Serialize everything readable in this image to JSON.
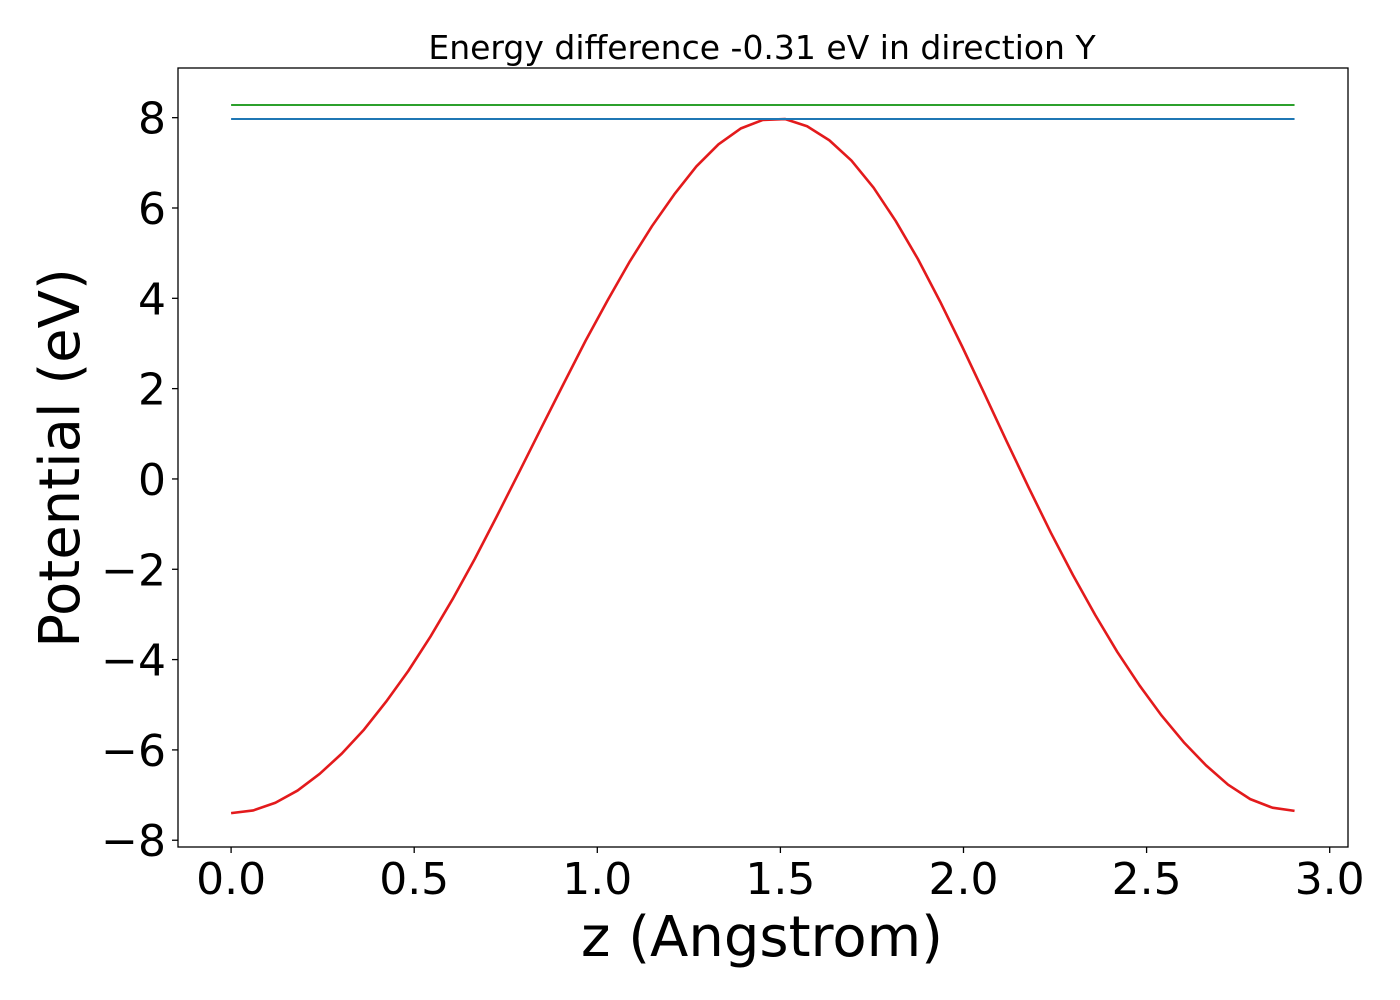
{
  "chart_data": {
    "type": "line",
    "title": "Energy difference -0.31 eV in direction Y",
    "xlabel": "z (Angstrom)",
    "ylabel": "Potential (eV)",
    "xlim": [
      -0.145,
      3.05
    ],
    "ylim": [
      -8.15,
      9.1
    ],
    "x_ticks": [
      0.0,
      0.5,
      1.0,
      1.5,
      2.0,
      2.5,
      3.0
    ],
    "x_tick_labels": [
      "0.0",
      "0.5",
      "1.0",
      "1.5",
      "2.0",
      "2.5",
      "3.0"
    ],
    "y_ticks": [
      -8,
      -6,
      -4,
      -2,
      0,
      2,
      4,
      6,
      8
    ],
    "y_tick_labels": [
      "−8",
      "−6",
      "−4",
      "−2",
      "0",
      "2",
      "4",
      "6",
      "8"
    ],
    "grid": false,
    "series": [
      {
        "name": "potential",
        "color": "#e31a1c",
        "x": [
          0.0,
          0.0605,
          0.121,
          0.1815,
          0.242,
          0.3025,
          0.363,
          0.4235,
          0.484,
          0.5445,
          0.605,
          0.6655,
          0.726,
          0.7865,
          0.847,
          0.9075,
          0.968,
          1.0285,
          1.089,
          1.1495,
          1.21,
          1.2705,
          1.331,
          1.3915,
          1.452,
          1.5125,
          1.573,
          1.6335,
          1.694,
          1.7545,
          1.815,
          1.8755,
          1.936,
          1.9965,
          2.057,
          2.1175,
          2.178,
          2.2385,
          2.299,
          2.3595,
          2.42,
          2.4805,
          2.541,
          2.6015,
          2.662,
          2.7225,
          2.783,
          2.8435,
          2.904
        ],
        "y": [
          -7.4,
          -7.34,
          -7.17,
          -6.9,
          -6.53,
          -6.08,
          -5.55,
          -4.93,
          -4.25,
          -3.49,
          -2.66,
          -1.77,
          -0.82,
          0.15,
          1.13,
          2.1,
          3.06,
          3.96,
          4.82,
          5.6,
          6.3,
          6.92,
          7.41,
          7.76,
          7.95,
          7.97,
          7.81,
          7.5,
          7.05,
          6.45,
          5.71,
          4.87,
          3.93,
          2.93,
          1.89,
          0.84,
          -0.19,
          -1.19,
          -2.13,
          -3.01,
          -3.83,
          -4.57,
          -5.24,
          -5.83,
          -6.34,
          -6.77,
          -7.09,
          -7.28,
          -7.35
        ]
      },
      {
        "name": "level-blue",
        "color": "#1f77b4",
        "x": [
          0.0,
          2.904
        ],
        "y": [
          7.97,
          7.97
        ]
      },
      {
        "name": "level-green",
        "color": "#2ca02c",
        "x": [
          0.0,
          2.904
        ],
        "y": [
          8.28,
          8.28
        ]
      }
    ]
  }
}
